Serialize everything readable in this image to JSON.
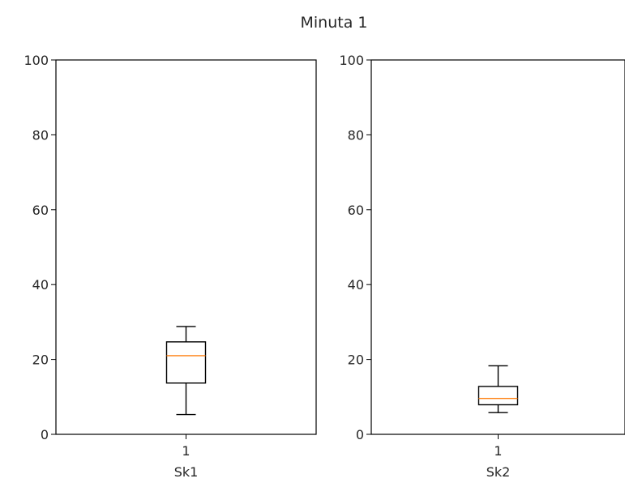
{
  "figure": {
    "title": "Minuta 1"
  },
  "chart_data": [
    {
      "type": "box",
      "title": "",
      "xlabel": "Sk1",
      "ylabel": "",
      "categories": [
        "1"
      ],
      "ylim": [
        0,
        100
      ],
      "yticks": [
        "0",
        "20",
        "40",
        "60",
        "80",
        "100"
      ],
      "box": {
        "whisker_low": 5.3,
        "q1": 13.7,
        "median": 21,
        "q3": 24.7,
        "whisker_high": 28.8
      },
      "colors": {
        "box": "#000000",
        "median": "#ff7f0e"
      },
      "grid": false
    },
    {
      "type": "box",
      "title": "",
      "xlabel": "Sk2",
      "ylabel": "",
      "categories": [
        "1"
      ],
      "ylim": [
        0,
        100
      ],
      "yticks": [
        "0",
        "20",
        "40",
        "60",
        "80",
        "100"
      ],
      "box": {
        "whisker_low": 5.8,
        "q1": 7.9,
        "median": 9.6,
        "q3": 12.8,
        "whisker_high": 18.3
      },
      "colors": {
        "box": "#000000",
        "median": "#ff7f0e"
      },
      "grid": false
    }
  ]
}
